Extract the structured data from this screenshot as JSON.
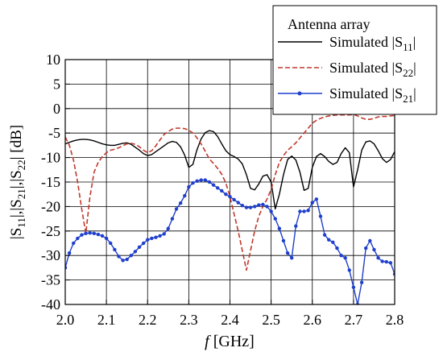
{
  "chart_data": {
    "type": "line",
    "title": "",
    "xlabel": {
      "italic": "f",
      "rest": " [GHz]"
    },
    "ylabel": "|S11|,|S21|,|S22| [dB]",
    "xlim": [
      2.0,
      2.8
    ],
    "ylim": [
      -40,
      10
    ],
    "grid": true,
    "xticks": [
      2.0,
      2.1,
      2.2,
      2.3,
      2.4,
      2.5,
      2.6,
      2.7,
      2.8
    ],
    "yticks": [
      10,
      5,
      0,
      -5,
      -10,
      -15,
      -20,
      -25,
      -30,
      -35,
      -40
    ],
    "xtick_labels": [
      "2.0",
      "2.1",
      "2.2",
      "2.3",
      "2.4",
      "2.5",
      "2.6",
      "2.7",
      "2.8"
    ],
    "ytick_labels": [
      "10",
      "5",
      "0",
      "-5",
      "-10",
      "-15",
      "-20",
      "-25",
      "-30",
      "-35",
      "-40"
    ],
    "legend": {
      "title": "Antenna array",
      "placement": "top-right",
      "entries": [
        {
          "prefix": "Simulated |S",
          "sub": "11",
          "suffix": "|"
        },
        {
          "prefix": "Simulated |S",
          "sub": "22",
          "suffix": "|"
        },
        {
          "prefix": "Simulated |S",
          "sub": "21",
          "suffix": "|"
        }
      ]
    },
    "series": [
      {
        "key": "S11",
        "color": "#000000",
        "style": "solid",
        "x": [
          2.0,
          2.01,
          2.02,
          2.03,
          2.04,
          2.05,
          2.06,
          2.07,
          2.08,
          2.09,
          2.1,
          2.11,
          2.12,
          2.13,
          2.14,
          2.15,
          2.16,
          2.17,
          2.18,
          2.19,
          2.2,
          2.21,
          2.22,
          2.23,
          2.24,
          2.25,
          2.26,
          2.27,
          2.28,
          2.29,
          2.3,
          2.31,
          2.32,
          2.33,
          2.34,
          2.35,
          2.36,
          2.37,
          2.38,
          2.39,
          2.4,
          2.41,
          2.42,
          2.43,
          2.44,
          2.45,
          2.46,
          2.47,
          2.48,
          2.49,
          2.5,
          2.51,
          2.52,
          2.53,
          2.54,
          2.55,
          2.56,
          2.57,
          2.58,
          2.59,
          2.6,
          2.61,
          2.62,
          2.63,
          2.64,
          2.65,
          2.66,
          2.67,
          2.68,
          2.69,
          2.7,
          2.71,
          2.72,
          2.73,
          2.74,
          2.75,
          2.76,
          2.77,
          2.78,
          2.79,
          2.8
        ],
        "y": [
          -7.2,
          -6.9,
          -6.6,
          -6.4,
          -6.3,
          -6.3,
          -6.4,
          -6.6,
          -6.9,
          -7.2,
          -7.4,
          -7.5,
          -7.5,
          -7.3,
          -7.1,
          -7.0,
          -7.3,
          -7.9,
          -8.5,
          -9.2,
          -9.6,
          -9.4,
          -8.8,
          -8.2,
          -7.6,
          -7.0,
          -6.7,
          -6.9,
          -7.8,
          -9.5,
          -12.0,
          -11.4,
          -8.4,
          -6.2,
          -4.9,
          -4.5,
          -4.7,
          -5.7,
          -7.2,
          -8.6,
          -9.4,
          -9.8,
          -10.3,
          -11.3,
          -13.5,
          -16.3,
          -16.6,
          -15.4,
          -13.8,
          -13.5,
          -15.0,
          -20.5,
          -17.5,
          -13.5,
          -10.4,
          -9.7,
          -10.5,
          -13.0,
          -16.7,
          -16.3,
          -12.0,
          -9.8,
          -9.2,
          -9.8,
          -10.8,
          -11.4,
          -11.0,
          -9.2,
          -8.0,
          -9.0,
          -16.0,
          -12.5,
          -8.5,
          -6.8,
          -6.6,
          -7.2,
          -8.6,
          -10.2,
          -11.0,
          -10.4,
          -8.8
        ]
      },
      {
        "key": "S22",
        "color": "#c0392b",
        "style": "dashed",
        "x": [
          2.0,
          2.01,
          2.02,
          2.03,
          2.04,
          2.05,
          2.06,
          2.07,
          2.08,
          2.09,
          2.1,
          2.11,
          2.12,
          2.13,
          2.14,
          2.15,
          2.16,
          2.17,
          2.18,
          2.19,
          2.2,
          2.21,
          2.22,
          2.23,
          2.24,
          2.25,
          2.26,
          2.27,
          2.28,
          2.29,
          2.3,
          2.31,
          2.32,
          2.33,
          2.34,
          2.35,
          2.36,
          2.37,
          2.38,
          2.39,
          2.4,
          2.41,
          2.42,
          2.43,
          2.44,
          2.45,
          2.46,
          2.47,
          2.48,
          2.49,
          2.5,
          2.51,
          2.52,
          2.53,
          2.54,
          2.55,
          2.56,
          2.57,
          2.58,
          2.59,
          2.6,
          2.61,
          2.62,
          2.63,
          2.64,
          2.65,
          2.66,
          2.67,
          2.68,
          2.69,
          2.7,
          2.71,
          2.72,
          2.73,
          2.74,
          2.75,
          2.76,
          2.77,
          2.78,
          2.79,
          2.8
        ],
        "y": [
          -5.8,
          -7.5,
          -10.5,
          -15.0,
          -20.5,
          -25.5,
          -18.0,
          -13.0,
          -11.0,
          -9.8,
          -9.0,
          -8.5,
          -8.3,
          -8.0,
          -7.6,
          -7.2,
          -7.1,
          -7.3,
          -7.8,
          -8.5,
          -9.0,
          -8.6,
          -7.6,
          -6.4,
          -5.3,
          -4.7,
          -4.2,
          -4.0,
          -4.0,
          -4.1,
          -4.4,
          -5.0,
          -6.0,
          -7.2,
          -8.7,
          -10.3,
          -11.2,
          -12.2,
          -13.4,
          -15.2,
          -18.0,
          -21.5,
          -25.0,
          -29.0,
          -33.0,
          -29.0,
          -25.0,
          -22.0,
          -20.0,
          -18.5,
          -16.5,
          -13.5,
          -11.0,
          -9.6,
          -8.5,
          -7.8,
          -7.0,
          -6.0,
          -5.0,
          -4.0,
          -3.0,
          -2.4,
          -2.0,
          -1.7,
          -1.5,
          -1.4,
          -1.3,
          -1.3,
          -1.3,
          -1.3,
          -1.2,
          -1.5,
          -1.9,
          -2.2,
          -2.2,
          -2.0,
          -1.7,
          -1.6,
          -1.6,
          -1.5,
          -1.4
        ]
      },
      {
        "key": "S21",
        "color": "#1f3fcc",
        "style": "solid-dots",
        "x": [
          2.0,
          2.01,
          2.02,
          2.03,
          2.04,
          2.05,
          2.06,
          2.07,
          2.08,
          2.09,
          2.1,
          2.11,
          2.12,
          2.13,
          2.14,
          2.15,
          2.16,
          2.17,
          2.18,
          2.19,
          2.2,
          2.21,
          2.22,
          2.23,
          2.24,
          2.25,
          2.26,
          2.27,
          2.28,
          2.29,
          2.3,
          2.31,
          2.32,
          2.33,
          2.34,
          2.35,
          2.36,
          2.37,
          2.38,
          2.39,
          2.4,
          2.41,
          2.42,
          2.43,
          2.44,
          2.45,
          2.46,
          2.47,
          2.48,
          2.49,
          2.5,
          2.51,
          2.52,
          2.53,
          2.54,
          2.55,
          2.56,
          2.57,
          2.58,
          2.59,
          2.6,
          2.61,
          2.62,
          2.63,
          2.64,
          2.65,
          2.66,
          2.67,
          2.68,
          2.69,
          2.7,
          2.71,
          2.72,
          2.73,
          2.74,
          2.75,
          2.76,
          2.77,
          2.78,
          2.79,
          2.8
        ],
        "y": [
          -32.5,
          -29.5,
          -27.5,
          -26.5,
          -25.8,
          -25.5,
          -25.4,
          -25.5,
          -25.7,
          -26.0,
          -26.5,
          -27.5,
          -28.8,
          -30.2,
          -31.0,
          -30.8,
          -30.0,
          -29.2,
          -28.3,
          -27.5,
          -26.8,
          -26.5,
          -26.3,
          -26.0,
          -25.6,
          -24.5,
          -22.5,
          -20.5,
          -19.3,
          -17.8,
          -16.0,
          -15.2,
          -14.8,
          -14.6,
          -14.6,
          -15.0,
          -15.6,
          -16.2,
          -16.8,
          -17.5,
          -18.0,
          -18.6,
          -19.2,
          -19.8,
          -20.2,
          -20.2,
          -20.0,
          -19.7,
          -19.6,
          -20.0,
          -21.0,
          -22.5,
          -24.5,
          -27.0,
          -29.5,
          -30.5,
          -24.0,
          -21.0,
          -21.0,
          -20.8,
          -19.2,
          -18.5,
          -22.0,
          -25.8,
          -26.8,
          -27.3,
          -28.5,
          -30.0,
          -30.5,
          -33.0,
          -36.5,
          -40.0,
          -35.5,
          -28.5,
          -27.0,
          -28.8,
          -30.5,
          -31.2,
          -31.3,
          -31.5,
          -33.8
        ]
      }
    ]
  }
}
